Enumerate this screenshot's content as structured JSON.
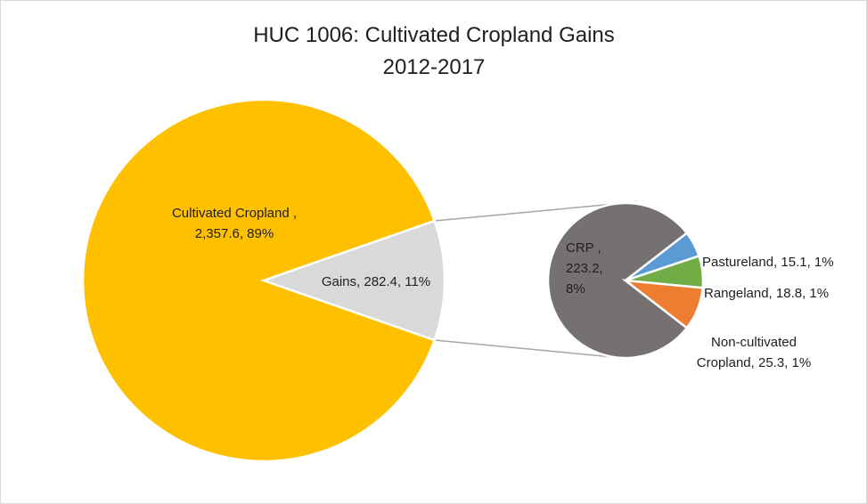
{
  "chart_data": {
    "type": "pie",
    "subtype": "pie-of-pie",
    "title": "HUC 1006: Cultivated Cropland Gains",
    "subtitle": "2012-2017",
    "main_pie": {
      "slices": [
        {
          "name": "Cultivated Cropland",
          "value": 2357.6,
          "percent": "89%",
          "color": "#FFC000",
          "label_lines": [
            "Cultivated Cropland ,",
            "2,357.6, 89%"
          ]
        },
        {
          "name": "Gains",
          "value": 282.4,
          "percent": "11%",
          "color": "#D9D9D9",
          "label_lines": [
            "Gains, 282.4, 11%"
          ]
        }
      ]
    },
    "secondary_pie": {
      "slices": [
        {
          "name": "CRP",
          "value": 223.2,
          "percent": "8%",
          "color": "#767171",
          "label_lines": [
            "CRP ,",
            "223.2,",
            "8%"
          ]
        },
        {
          "name": "Pastureland",
          "value": 15.1,
          "percent": "1%",
          "color": "#5B9BD5",
          "label_lines": [
            "Pastureland, 15.1, 1%"
          ]
        },
        {
          "name": "Rangeland",
          "value": 18.8,
          "percent": "1%",
          "color": "#70AD47",
          "label_lines": [
            "Rangeland, 18.8, 1%"
          ]
        },
        {
          "name": "Non-cultivated Cropland",
          "value": 25.3,
          "percent": "1%",
          "color": "#ED7D31",
          "label_lines": [
            "Non-cultivated",
            "Cropland, 25.3, 1%"
          ]
        }
      ]
    },
    "connector_color": "#A6A6A6"
  }
}
